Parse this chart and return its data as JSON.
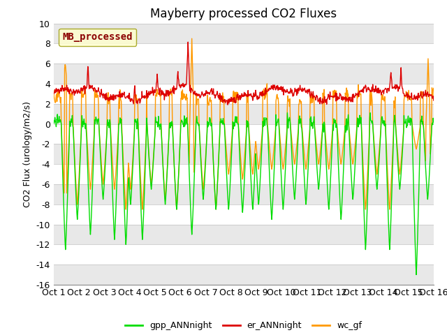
{
  "title": "Mayberry processed CO2 Fluxes",
  "ylabel": "CO2 Flux (urology/m2/s)",
  "ylim": [
    -16,
    10
  ],
  "yticks": [
    -16,
    -14,
    -12,
    -10,
    -8,
    -6,
    -4,
    -2,
    0,
    2,
    4,
    6,
    8,
    10
  ],
  "xlabels": [
    "Oct 1",
    "Oct 2",
    "Oct 3",
    "Oct 4",
    "Oct 5",
    "Oct 6",
    "Oct 7",
    "Oct 8",
    "Oct 9",
    "Oct 10",
    "Oct 11",
    "Oct 12",
    "Oct 13",
    "Oct 14",
    "Oct 15",
    "Oct 16"
  ],
  "legend_label": "MB_processed",
  "legend_label_color": "#8b0000",
  "legend_box_facecolor": "#ffffcc",
  "legend_box_edgecolor": "#999900",
  "series_labels": [
    "gpp_ANNnight",
    "er_ANNnight",
    "wc_gf"
  ],
  "series_colors": [
    "#00dd00",
    "#dd0000",
    "#ff9900"
  ],
  "line_width": 1.0,
  "bg_color": "#ffffff",
  "title_fontsize": 12,
  "tick_fontsize": 9,
  "legend_fontsize": 9,
  "n_points": 900,
  "seed": 42
}
